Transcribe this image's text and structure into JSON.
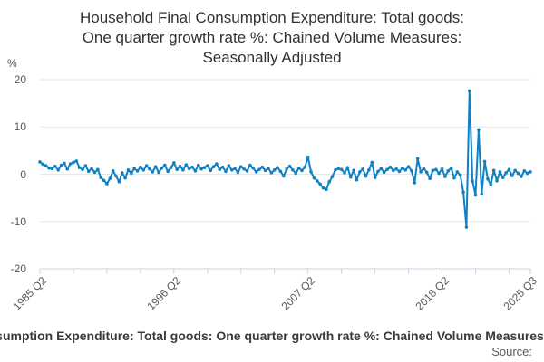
{
  "header": {
    "title_line1": "Household Final Consumption Expenditure: Total goods:",
    "title_line2": "One quarter growth rate %: Chained Volume Measures:",
    "title_line3": "Seasonally Adjusted"
  },
  "axes": {
    "unit": "%"
  },
  "footer": {
    "caption": "Household Final Consumption Expenditure: Total goods: One quarter growth rate %: Chained Volume Measures: Seasonally Adjusted",
    "source": "Source:"
  },
  "chart_data": {
    "type": "line",
    "title": "Household Final Consumption Expenditure: Total goods: One quarter growth rate %: Chained Volume Measures: Seasonally Adjusted",
    "ylabel": "%",
    "ylim": [
      -20,
      20
    ],
    "y_ticks": [
      20,
      10,
      0,
      -10,
      -20
    ],
    "grid": true,
    "legend": "none",
    "frequency": "quarterly",
    "x_start": "1985 Q2",
    "x_end": "2025 Q3",
    "x_tick_every": 11,
    "x_tick_labels": [
      {
        "index": 0,
        "label": "1985 Q2"
      },
      {
        "index": 44,
        "label": "1996 Q2"
      },
      {
        "index": 88,
        "label": "2007 Q2"
      },
      {
        "index": 132,
        "label": "2018 Q2"
      },
      {
        "index": 161,
        "label": "2025 Q3"
      }
    ],
    "line_color": "#1180c2",
    "grid_color": "#e6e6e6",
    "axis_color": "#c9d1e3",
    "values": [
      2.6,
      2.1,
      1.8,
      1.3,
      1.2,
      1.7,
      0.9,
      1.9,
      2.3,
      1.1,
      2.2,
      2.5,
      2.8,
      1.4,
      1.0,
      1.8,
      0.6,
      1.2,
      0.4,
      1.0,
      -0.7,
      -1.3,
      -2.0,
      -0.9,
      0.7,
      -0.4,
      -1.6,
      0.3,
      -0.8,
      0.9,
      0.2,
      1.2,
      0.7,
      1.5,
      0.9,
      1.8,
      1.1,
      0.5,
      1.6,
      0.4,
      1.3,
      1.9,
      0.6,
      1.4,
      2.4,
      1.0,
      1.7,
      0.9,
      2.0,
      1.2,
      1.5,
      0.7,
      1.9,
      1.1,
      1.4,
      1.8,
      0.8,
      1.6,
      2.2,
      1.0,
      1.5,
      0.6,
      1.8,
      0.9,
      1.2,
      0.4,
      1.6,
      1.1,
      0.7,
      1.9,
      1.3,
      0.5,
      1.0,
      1.5,
      0.8,
      1.2,
      0.3,
      0.9,
      1.4,
      0.6,
      -0.4,
      1.1,
      1.7,
      0.9,
      0.2,
      1.3,
      0.8,
      1.5,
      3.6,
      0.5,
      -0.8,
      -1.4,
      -2.1,
      -2.9,
      -3.2,
      -1.6,
      -0.5,
      0.9,
      1.2,
      1.0,
      0.3,
      1.4,
      -0.6,
      0.8,
      -1.2,
      0.5,
      1.1,
      -0.4,
      0.9,
      2.5,
      -0.7,
      0.6,
      1.2,
      0.4,
      1.0,
      1.5,
      0.8,
      1.1,
      0.6,
      1.3,
      0.9,
      1.6,
      0.7,
      -1.8,
      3.3,
      0.5,
      1.2,
      0.4,
      -0.9,
      0.8,
      1.0,
      0.2,
      1.1,
      -0.5,
      0.7,
      1.3,
      -0.8,
      0.5,
      -0.2,
      -3.8,
      -11.2,
      17.6,
      -1.5,
      -4.4,
      9.4,
      -4.2,
      2.7,
      -1.0,
      -2.2,
      0.8,
      -1.4,
      0.5,
      -0.7,
      0.3,
      1.0,
      -0.3,
      0.8,
      0.2,
      -0.5,
      0.7,
      0.2,
      0.5
    ]
  }
}
